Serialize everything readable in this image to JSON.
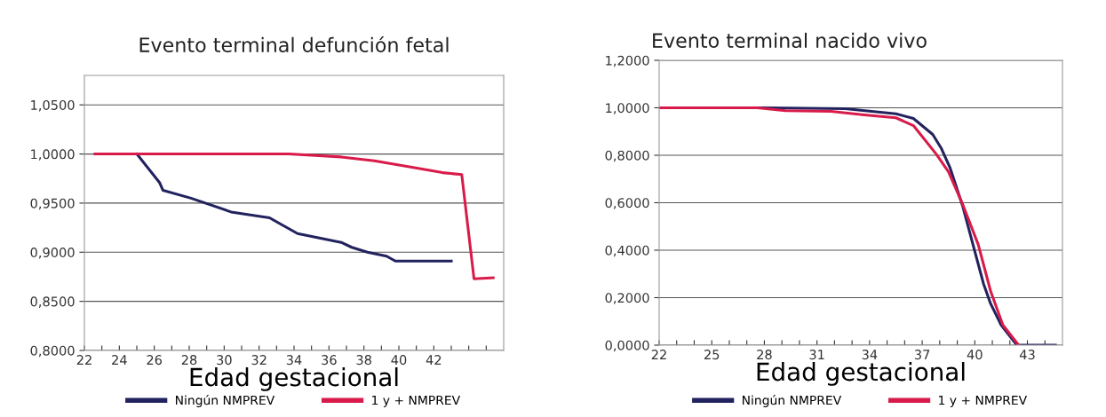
{
  "chart_data": [
    {
      "type": "line",
      "title": "Evento terminal defunción fetal",
      "xlabel": "Edad gestacional",
      "xlim": [
        22,
        46
      ],
      "ylim": [
        0.8,
        1.08
      ],
      "xticks": [
        22,
        {
          "value": 23,
          "label": null
        },
        24,
        {
          "value": 25,
          "label": null
        },
        26,
        {
          "value": 27,
          "label": null
        },
        28,
        {
          "value": 29,
          "label": null
        },
        30,
        {
          "value": 31,
          "label": null
        },
        32,
        {
          "value": 33,
          "label": null
        },
        34,
        {
          "value": 35,
          "label": null
        },
        36,
        {
          "value": 37,
          "label": null
        },
        38,
        {
          "value": 39,
          "label": null
        },
        40,
        {
          "value": 41,
          "label": null
        },
        42,
        {
          "value": 43,
          "label": null
        },
        {
          "value": 44,
          "label": null
        },
        {
          "value": 45,
          "label": null
        }
      ],
      "yticks": [
        {
          "value": 0.8,
          "label": "0,8000"
        },
        {
          "value": 0.85,
          "label": "0,8500"
        },
        {
          "value": 0.9,
          "label": "0,9000"
        },
        {
          "value": 0.95,
          "label": "0,9500"
        },
        {
          "value": 1.0,
          "label": "1,0000"
        },
        {
          "value": 1.05,
          "label": "1,0500"
        }
      ],
      "grid": "y",
      "legend": "bottom",
      "series": [
        {
          "name": "Ningún NMPREV",
          "color": "#22225f",
          "x": [
            25.0,
            26.3,
            26.5,
            28.1,
            30.4,
            32.6,
            33.5,
            34.2,
            36.7,
            37.3,
            38.2,
            39.3,
            39.8,
            43.0
          ],
          "values": [
            1.0,
            0.971,
            0.963,
            0.955,
            0.941,
            0.935,
            0.926,
            0.919,
            0.91,
            0.905,
            0.9,
            0.896,
            0.891,
            0.891
          ]
        },
        {
          "name": "1 y + NMPREV",
          "color": "#d81b4a",
          "x": [
            22.6,
            33.7,
            36.7,
            38.6,
            40.6,
            42.5,
            43.6,
            44.3,
            45.4
          ],
          "values": [
            1.0,
            1.0,
            0.997,
            0.993,
            0.987,
            0.981,
            0.979,
            0.873,
            0.874
          ]
        }
      ]
    },
    {
      "type": "line",
      "title": "Evento terminal nacido vivo",
      "xlabel": "Edad gestacional",
      "xlim": [
        22,
        45
      ],
      "ylim": [
        0,
        1.2
      ],
      "xticks": [
        22,
        {
          "value": 23,
          "label": null
        },
        {
          "value": 24,
          "label": null
        },
        25,
        {
          "value": 26,
          "label": null
        },
        {
          "value": 27,
          "label": null
        },
        28,
        {
          "value": 29,
          "label": null
        },
        {
          "value": 30,
          "label": null
        },
        31,
        {
          "value": 32,
          "label": null
        },
        {
          "value": 33,
          "label": null
        },
        34,
        {
          "value": 35,
          "label": null
        },
        {
          "value": 36,
          "label": null
        },
        37,
        {
          "value": 38,
          "label": null
        },
        {
          "value": 39,
          "label": null
        },
        40,
        {
          "value": 41,
          "label": null
        },
        {
          "value": 42,
          "label": null
        },
        43,
        {
          "value": 44,
          "label": null
        }
      ],
      "yticks": [
        {
          "value": 0,
          "label": "0,0000"
        },
        {
          "value": 0.2,
          "label": "0,2000"
        },
        {
          "value": 0.4,
          "label": "0,4000"
        },
        {
          "value": 0.6,
          "label": "0,6000"
        },
        {
          "value": 0.8,
          "label": "0,8000"
        },
        {
          "value": 1.0,
          "label": "1,0000"
        },
        {
          "value": 1.2,
          "label": "1,2000"
        }
      ],
      "grid": "y",
      "legend": "bottom",
      "series": [
        {
          "name": "Ningún NMPREV",
          "color": "#22225f",
          "x": [
            22,
            28,
            32.6,
            35.5,
            36.5,
            37.6,
            38.1,
            38.6,
            39.3,
            39.9,
            40.5,
            40.9,
            41.5,
            42.4,
            44.6
          ],
          "values": [
            1.0,
            1.0,
            0.996,
            0.975,
            0.955,
            0.888,
            0.828,
            0.745,
            0.588,
            0.423,
            0.258,
            0.175,
            0.085,
            0.0,
            0.0
          ]
        },
        {
          "name": "1 y + NMPREV",
          "color": "#d81b4a",
          "x": [
            22,
            27.6,
            29.2,
            31.8,
            33.7,
            35.5,
            36.5,
            37.8,
            38.5,
            39.3,
            40.2,
            40.9,
            41.6,
            42.5
          ],
          "values": [
            1.0,
            1.0,
            0.988,
            0.985,
            0.97,
            0.958,
            0.925,
            0.805,
            0.73,
            0.595,
            0.423,
            0.228,
            0.085,
            0.0
          ]
        }
      ]
    }
  ]
}
